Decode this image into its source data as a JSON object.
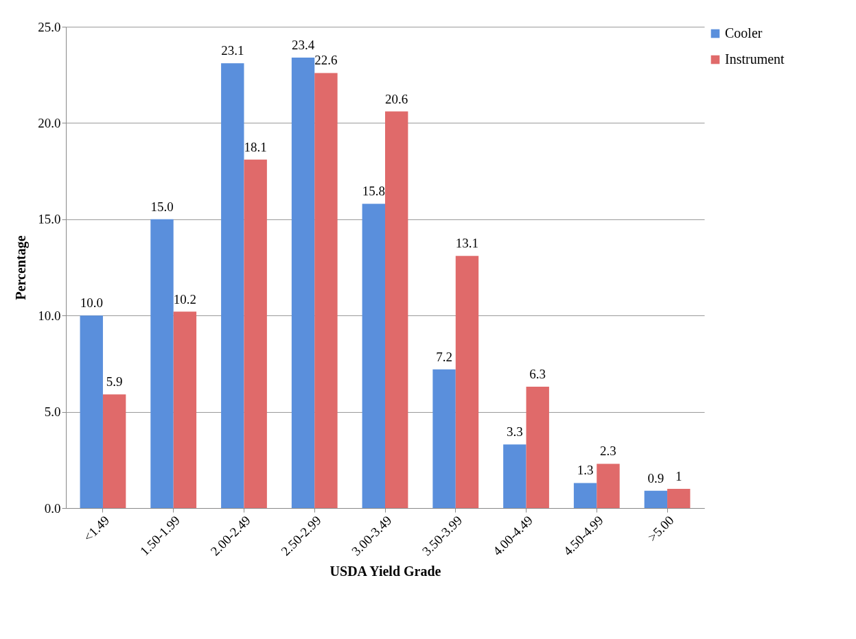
{
  "chart_data": {
    "type": "bar",
    "xlabel": "USDA Yield Grade",
    "ylabel": "Percentage",
    "categories": [
      "<1.49",
      "1.50-1.99",
      "2.00-2.49",
      "2.50-2.99",
      "3.00-3.49",
      "3.50-3.99",
      "4.00-4.49",
      "4.50-4.99",
      ">5.00"
    ],
    "series": [
      {
        "name": "Cooler",
        "color": "#5a8fdc",
        "values": [
          10.0,
          15.0,
          23.1,
          23.4,
          15.8,
          7.2,
          3.3,
          1.3,
          0.9
        ],
        "value_labels": [
          "10.0",
          "15.0",
          "23.1",
          "23.4",
          "15.8",
          "7.2",
          "3.3",
          "1.3",
          "0.9"
        ]
      },
      {
        "name": "Instrument",
        "color": "#e06a6a",
        "values": [
          5.9,
          10.2,
          18.1,
          22.6,
          20.6,
          13.1,
          6.3,
          2.3,
          1
        ],
        "value_labels": [
          "5.9",
          "10.2",
          "18.1",
          "22.6",
          "20.6",
          "13.1",
          "6.3",
          "2.3",
          "1"
        ]
      }
    ],
    "ylim": [
      0,
      25
    ],
    "yticks": [
      {
        "value": 0,
        "label": "0.0"
      },
      {
        "value": 5,
        "label": "5.0"
      },
      {
        "value": 10,
        "label": "10.0"
      },
      {
        "value": 15,
        "label": "15.0"
      },
      {
        "value": 20,
        "label": "20.0"
      },
      {
        "value": 25,
        "label": "25.0"
      }
    ],
    "grid": "y",
    "legend": "right"
  }
}
